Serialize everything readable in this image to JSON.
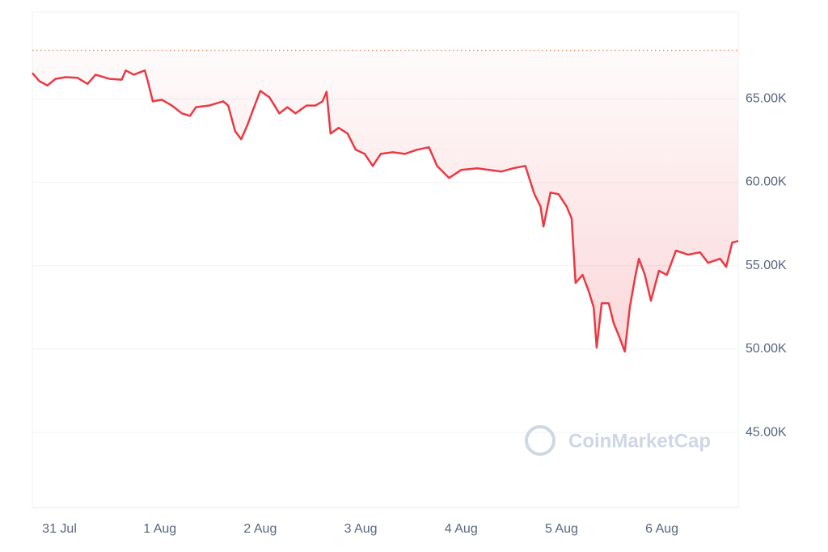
{
  "chart_data": {
    "type": "line",
    "watermark": "CoinMarketCap",
    "x": [
      -0.27,
      -0.2,
      -0.12,
      -0.04,
      0.06,
      0.18,
      0.28,
      0.36,
      0.5,
      0.62,
      0.66,
      0.74,
      0.85,
      0.88,
      0.93,
      1.02,
      1.12,
      1.22,
      1.3,
      1.36,
      1.49,
      1.63,
      1.68,
      1.75,
      1.81,
      1.87,
      1.93,
      2.0,
      2.09,
      2.19,
      2.27,
      2.35,
      2.46,
      2.55,
      2.62,
      2.66,
      2.7,
      2.78,
      2.87,
      2.95,
      3.04,
      3.12,
      3.2,
      3.32,
      3.44,
      3.56,
      3.68,
      3.76,
      3.88,
      4.0,
      4.16,
      4.28,
      4.4,
      4.52,
      4.64,
      4.73,
      4.79,
      4.82,
      4.89,
      4.97,
      5.05,
      5.1,
      5.14,
      5.21,
      5.27,
      5.32,
      5.35,
      5.4,
      5.47,
      5.52,
      5.57,
      5.63,
      5.68,
      5.73,
      5.77,
      5.83,
      5.89,
      5.97,
      6.05,
      6.14,
      6.26,
      6.38,
      6.46,
      6.58,
      6.64,
      6.7,
      6.76
    ],
    "series": [
      {
        "color": "#ea3943",
        "values": [
          66.55,
          66.06,
          65.8,
          66.2,
          66.3,
          66.26,
          65.9,
          66.45,
          66.2,
          66.15,
          66.7,
          66.45,
          66.7,
          66.06,
          64.85,
          64.95,
          64.6,
          64.13,
          63.98,
          64.5,
          64.6,
          64.85,
          64.6,
          63.06,
          62.58,
          63.4,
          64.37,
          65.48,
          65.1,
          64.13,
          64.5,
          64.13,
          64.6,
          64.6,
          64.85,
          65.43,
          62.92,
          63.26,
          62.92,
          61.95,
          61.7,
          60.98,
          61.7,
          61.8,
          61.7,
          61.95,
          62.1,
          60.98,
          60.26,
          60.74,
          60.84,
          60.74,
          60.64,
          60.84,
          60.98,
          59.29,
          58.56,
          57.35,
          59.38,
          59.29,
          58.56,
          57.84,
          53.97,
          54.45,
          53.48,
          52.51,
          50.09,
          52.75,
          52.75,
          51.54,
          50.82,
          49.85,
          52.51,
          54.21,
          55.42,
          54.45,
          52.9,
          54.69,
          54.45,
          55.9,
          55.66,
          55.8,
          55.17,
          55.42,
          54.93,
          56.38,
          56.48
        ]
      }
    ],
    "reference_value": 67.9,
    "xlim": [
      -0.27,
      6.76
    ],
    "xticks": [
      {
        "value": 0,
        "label": "31 Jul"
      },
      {
        "value": 1,
        "label": "1 Aug"
      },
      {
        "value": 2,
        "label": "2 Aug"
      },
      {
        "value": 3,
        "label": "3 Aug"
      },
      {
        "value": 4,
        "label": "4 Aug"
      },
      {
        "value": 5,
        "label": "5 Aug"
      },
      {
        "value": 6,
        "label": "6 Aug"
      }
    ],
    "ylim": [
      40.5,
      70.2
    ],
    "yticks": [
      {
        "value": 45,
        "label": "45.00K"
      },
      {
        "value": 50,
        "label": "50.00K"
      },
      {
        "value": 55,
        "label": "55.00K"
      },
      {
        "value": 60,
        "label": "60.00K"
      },
      {
        "value": 65,
        "label": "65.00K"
      }
    ],
    "grid": true
  }
}
